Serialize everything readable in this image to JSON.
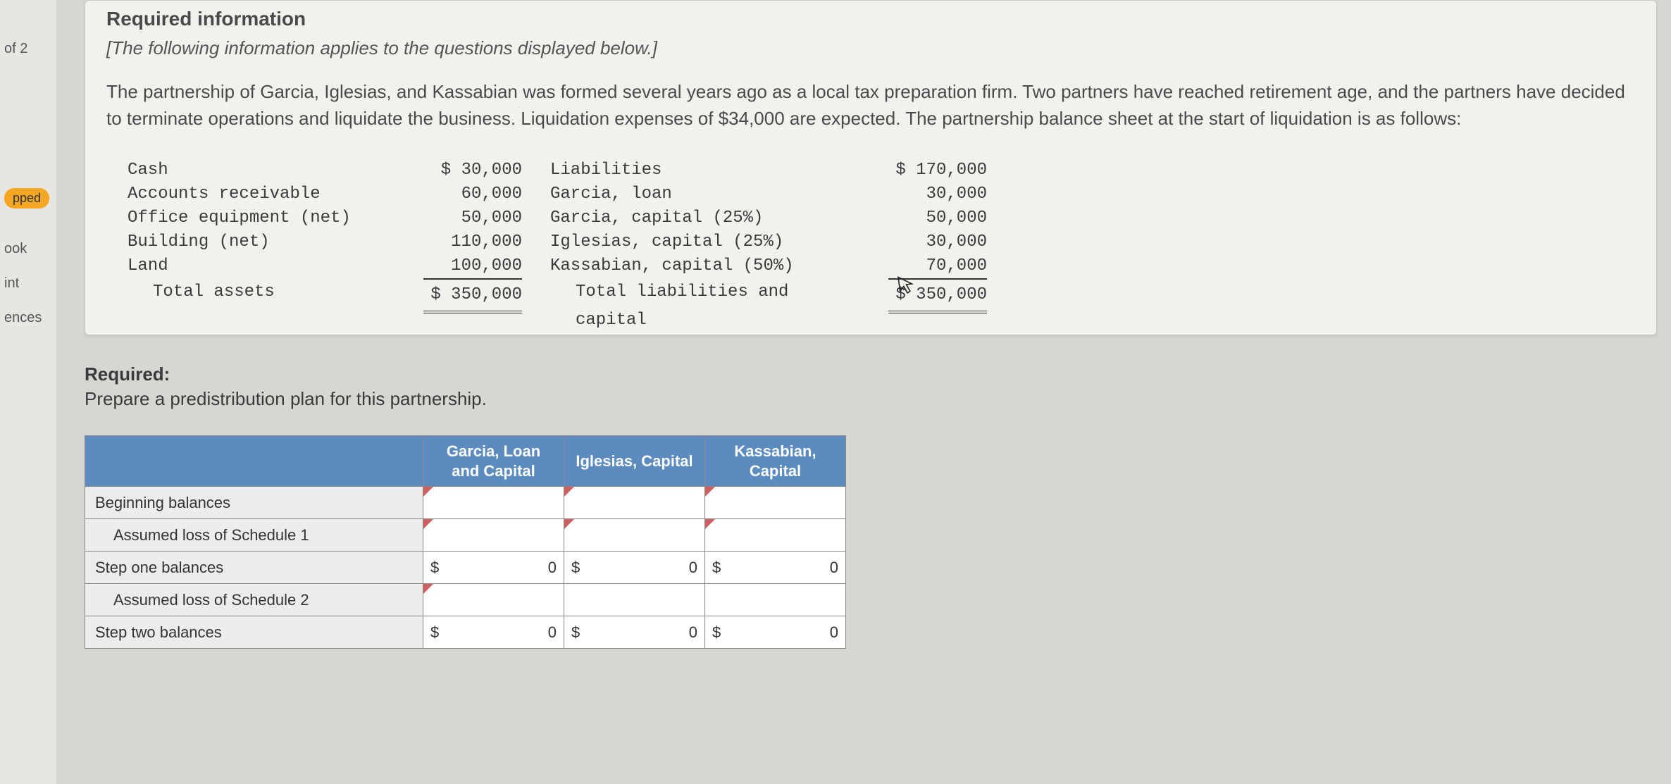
{
  "sidebar": {
    "label_of2": "of 2",
    "pill": "pped",
    "items": [
      "ook",
      "int",
      "ences"
    ]
  },
  "card": {
    "heading": "Required information",
    "subtitle": "[The following information applies to the questions displayed below.]",
    "body": "The partnership of Garcia, Iglesias, and Kassabian was formed several years ago as a local tax preparation firm. Two partners have reached retirement age, and the partners have decided to terminate operations and liquidate the business. Liquidation expenses of $34,000 are expected. The partnership balance sheet at the start of liquidation is as follows:"
  },
  "balance_sheet": {
    "assets": {
      "rows": [
        {
          "label": "Cash",
          "value": "$ 30,000"
        },
        {
          "label": "Accounts receivable",
          "value": "60,000"
        },
        {
          "label": "Office equipment (net)",
          "value": "50,000"
        },
        {
          "label": "Building (net)",
          "value": "110,000"
        },
        {
          "label": "Land",
          "value": "100,000"
        }
      ],
      "total_label": "Total assets",
      "total_value": "$ 350,000"
    },
    "liab": {
      "rows": [
        {
          "label": "Liabilities",
          "value": "$ 170,000"
        },
        {
          "label": "Garcia, loan",
          "value": "30,000"
        },
        {
          "label": "Garcia, capital (25%)",
          "value": "50,000"
        },
        {
          "label": "Iglesias, capital (25%)",
          "value": "30,000"
        },
        {
          "label": "Kassabian, capital (50%)",
          "value": "70,000"
        }
      ],
      "total_label": "Total liabilities and capital",
      "total_value": "$ 350,000"
    }
  },
  "required": {
    "label": "Required:",
    "text": "Prepare a predistribution plan for this partnership."
  },
  "answer_table": {
    "headers": [
      "Garcia, Loan and Capital",
      "Iglesias, Capital",
      "Kassabian, Capital"
    ],
    "rows": [
      {
        "label": "Beginning balances",
        "indent": false,
        "cells": [
          {
            "tri": true
          },
          {
            "tri": true
          },
          {
            "tri": true
          }
        ]
      },
      {
        "label": "Assumed loss of Schedule 1",
        "indent": true,
        "cells": [
          {
            "tri": true
          },
          {
            "tri": true
          },
          {
            "tri": true
          }
        ]
      },
      {
        "label": "Step one balances",
        "indent": false,
        "cells": [
          {
            "sym": "$",
            "num": "0"
          },
          {
            "sym": "$",
            "num": "0"
          },
          {
            "sym": "$",
            "num": "0"
          }
        ]
      },
      {
        "label": "Assumed loss of Schedule 2",
        "indent": true,
        "cells": [
          {
            "tri": true
          },
          {},
          {}
        ]
      },
      {
        "label": "Step two balances",
        "indent": false,
        "cells": [
          {
            "sym": "$",
            "num": "0"
          },
          {
            "sym": "$",
            "num": "0"
          },
          {
            "sym": "$",
            "num": "0"
          }
        ]
      }
    ]
  },
  "colors": {
    "header_bg": "#5b8bbf",
    "row_label_bg": "#ececec",
    "tri": "#d06060",
    "card_bg": "#f3f1ee",
    "page_bg": "#d8d6d3"
  }
}
